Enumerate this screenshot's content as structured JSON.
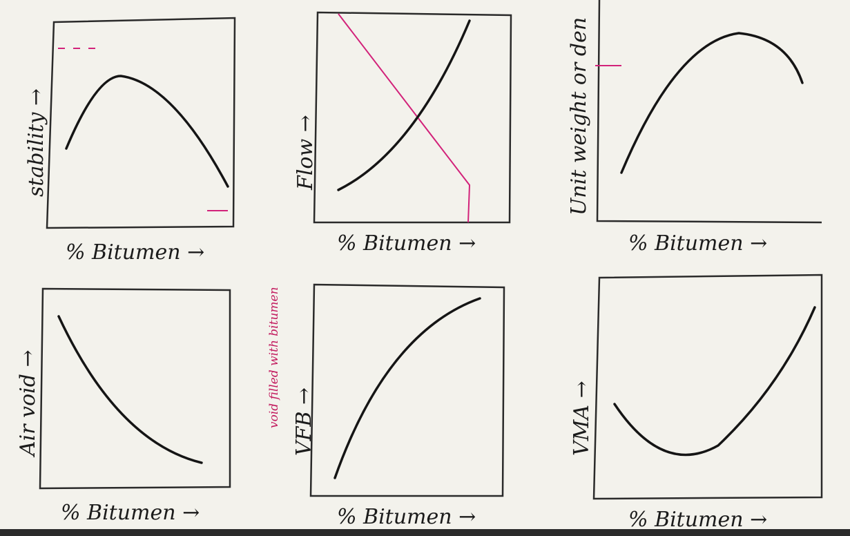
{
  "panels": [
    {
      "y_label": "stability →",
      "x_label": "% Bitumen →"
    },
    {
      "y_label": "Flow →",
      "x_label": "% Bitumen →"
    },
    {
      "y_label": "Unit weight or den",
      "x_label": "% Bitumen →"
    },
    {
      "y_label": "Air void →",
      "x_label": "% Bitumen →"
    },
    {
      "y_label": "VFB →",
      "x_label": "% Bitumen →",
      "note": "void filled with bitumen"
    },
    {
      "y_label": "VMA →",
      "x_label": "% Bitumen →"
    }
  ]
}
